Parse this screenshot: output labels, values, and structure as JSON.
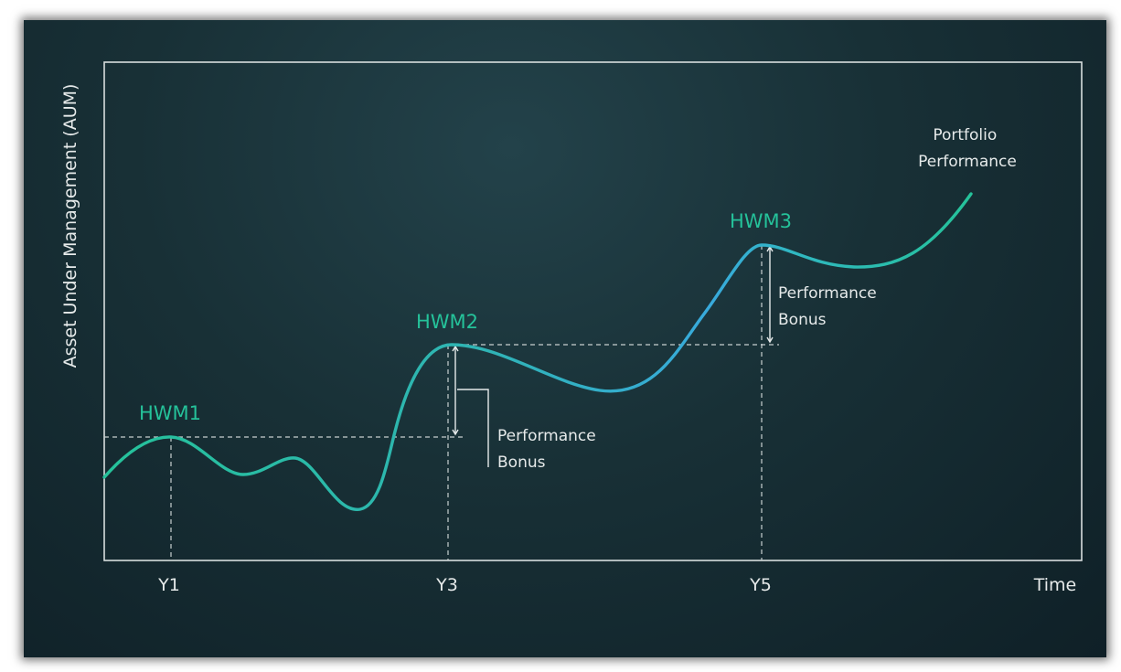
{
  "chart_data": {
    "type": "line",
    "ylabel": "Asset Under Management (AUM)",
    "xlabel": "Time",
    "x_ticks": [
      "Y1",
      "Y3",
      "Y5"
    ],
    "curve_label": "Portfolio Performance",
    "curve_label_lines": [
      "Portfolio",
      "Performance"
    ],
    "high_water_marks": [
      {
        "label": "HWM1",
        "x": "Y1"
      },
      {
        "label": "HWM2",
        "x": "Y3"
      },
      {
        "label": "HWM3",
        "x": "Y5"
      }
    ],
    "bonus_annotations": [
      {
        "label": "Performance Bonus",
        "lines": [
          "Performance",
          "Bonus"
        ],
        "from": "HWM1",
        "to": "HWM2"
      },
      {
        "label": "Performance Bonus",
        "lines": [
          "Performance",
          "Bonus"
        ],
        "from": "HWM2",
        "to": "HWM3"
      }
    ],
    "colors": {
      "curve": "#25c29a",
      "curve_highlight": "#35a9d6",
      "hwm_label": "#25c29a",
      "text": "#e6eaea",
      "axis": "#d8dede",
      "background": "#15292f"
    },
    "grid": false
  }
}
